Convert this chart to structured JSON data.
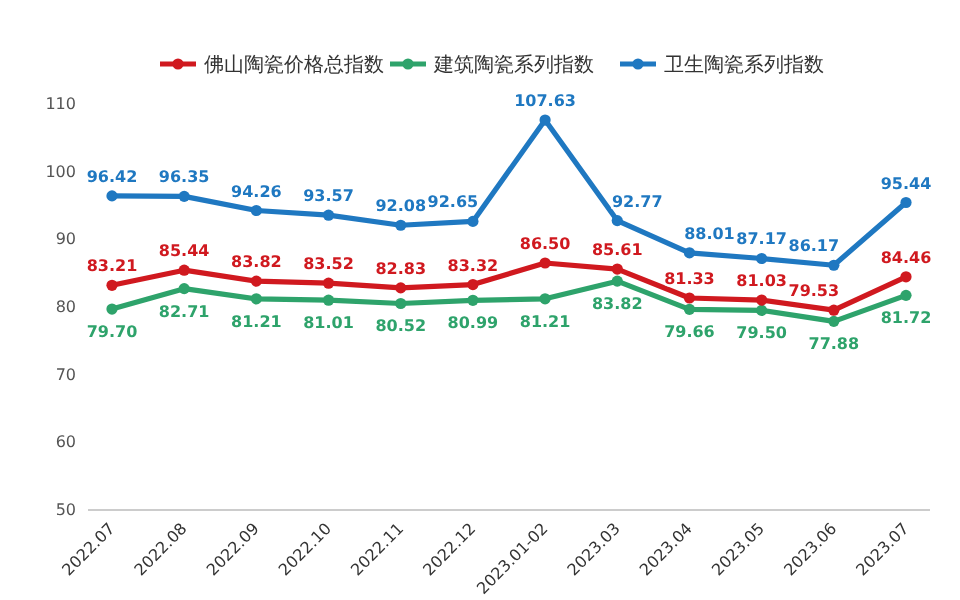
{
  "chart_data": {
    "type": "line",
    "categories": [
      "2022.07",
      "2022.08",
      "2022.09",
      "2022.10",
      "2022.11",
      "2022.12",
      "2023.01-02",
      "2023.03",
      "2023.04",
      "2023.05",
      "2023.06",
      "2023.07"
    ],
    "series": [
      {
        "name": "佛山陶瓷价格总指数",
        "color": "#d0191f",
        "values": [
          83.21,
          85.44,
          83.82,
          83.52,
          82.83,
          83.32,
          86.5,
          85.61,
          81.33,
          81.03,
          79.53,
          84.46
        ],
        "value_labels": [
          "83.21",
          "85.44",
          "83.82",
          "83.52",
          "82.83",
          "83.32",
          "86.50",
          "85.61",
          "81.33",
          "81.03",
          "79.53",
          "84.46"
        ]
      },
      {
        "name": "建筑陶瓷系列指数",
        "color": "#2ea36b",
        "values": [
          79.7,
          82.71,
          81.21,
          81.01,
          80.52,
          80.99,
          81.21,
          83.82,
          79.66,
          79.5,
          77.88,
          81.72
        ],
        "value_labels": [
          "79.70",
          "82.71",
          "81.21",
          "81.01",
          "80.52",
          "80.99",
          "81.21",
          "83.82",
          "79.66",
          "79.50",
          "77.88",
          "81.72"
        ]
      },
      {
        "name": "卫生陶瓷系列指数",
        "color": "#1f78c1",
        "values": [
          96.42,
          96.35,
          94.26,
          93.57,
          92.08,
          92.65,
          107.63,
          92.77,
          88.01,
          87.17,
          86.17,
          95.44
        ],
        "value_labels": [
          "96.42",
          "96.35",
          "94.26",
          "93.57",
          "92.08",
          "92.65",
          "107.63",
          "92.77",
          "88.01",
          "87.17",
          "86.17",
          "95.44"
        ]
      }
    ],
    "ylim": [
      50,
      110
    ],
    "yticks": [
      50,
      60,
      70,
      80,
      90,
      100,
      110
    ],
    "grid": false,
    "legend": "top",
    "marker": "circle",
    "line_style": "solid"
  }
}
